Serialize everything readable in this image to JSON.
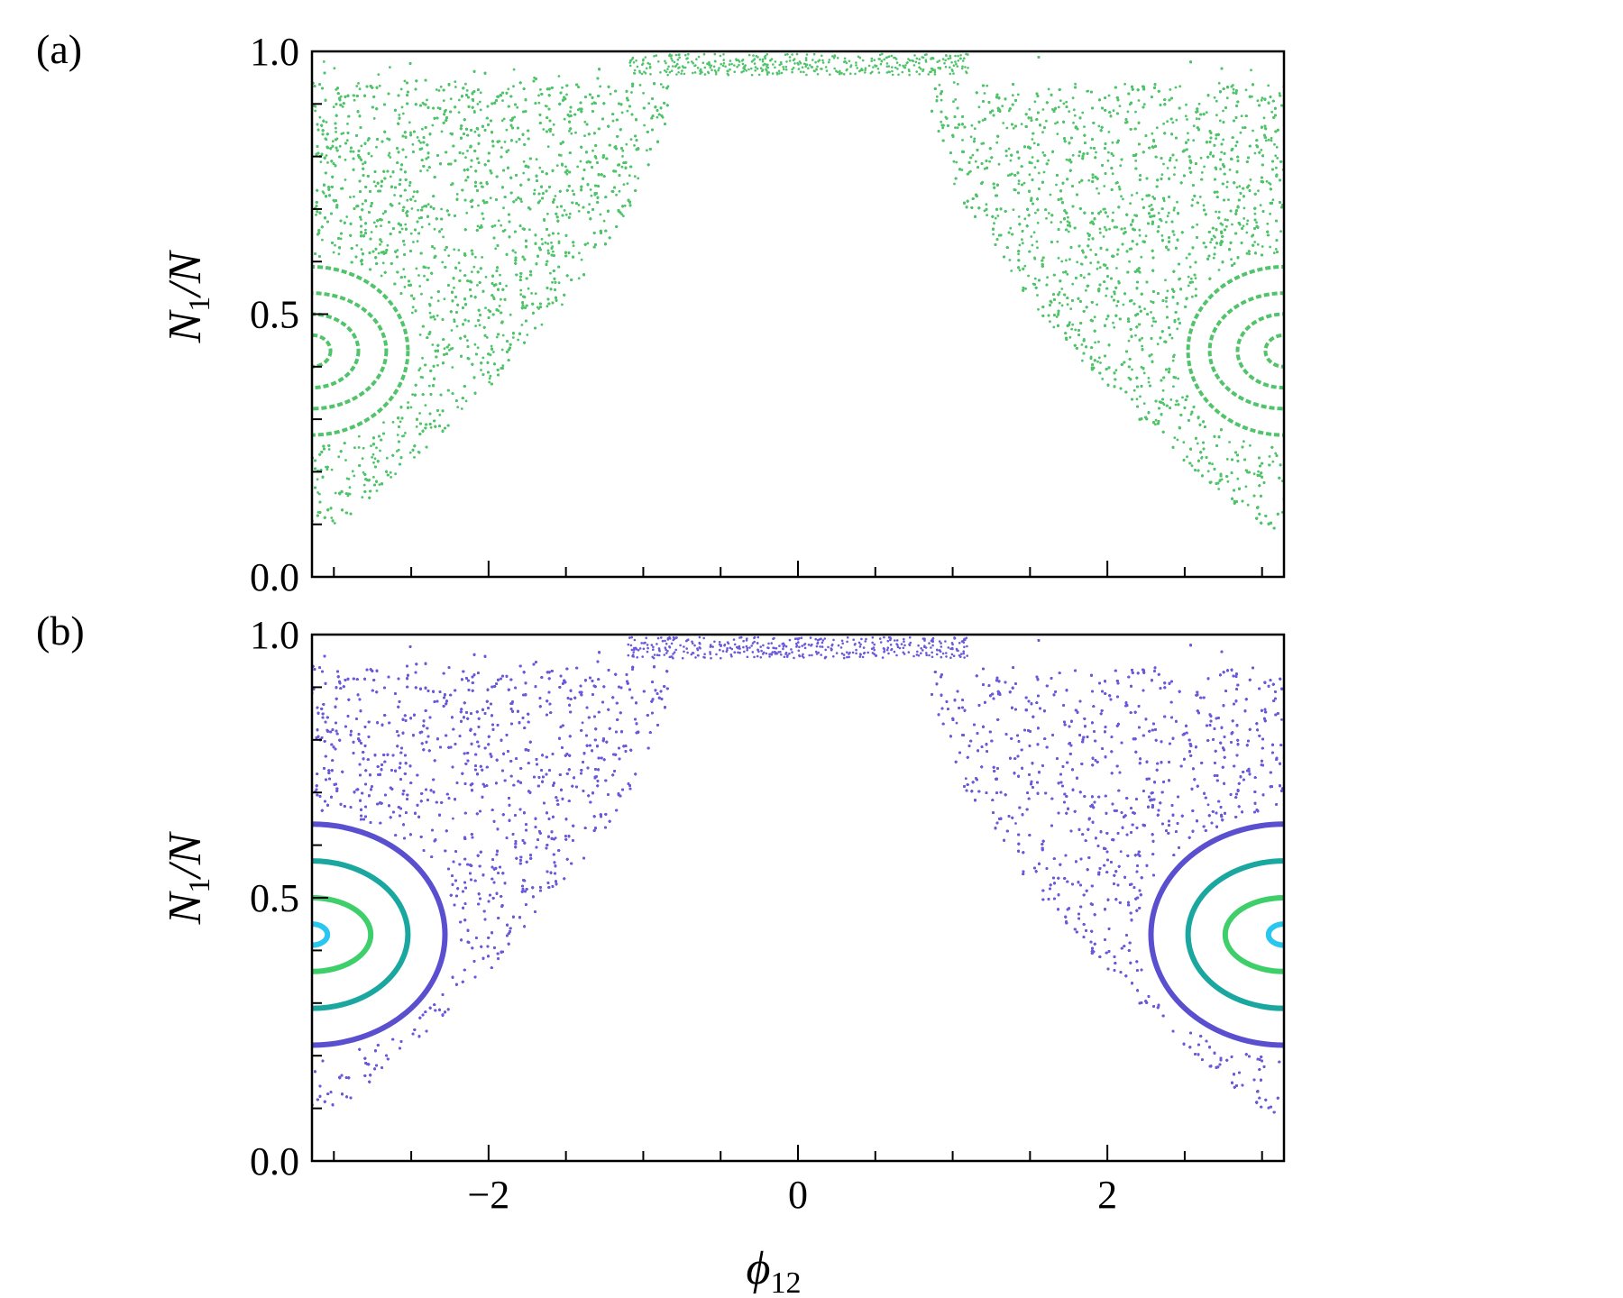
{
  "chart_data": [
    {
      "type": "scatter",
      "panel_label": "(a)",
      "xlabel": "ϕ12",
      "ylabel": "N1/N",
      "xlim": [
        -3.1416,
        3.1416
      ],
      "ylim": [
        0,
        1
      ],
      "x_ticks": [],
      "y_ticks": [
        "0.0",
        "0.5",
        "1.0"
      ],
      "grid": false,
      "colors": {
        "chaotic": "#4fc46a"
      },
      "series": [
        {
          "kind": "chaotic-sea",
          "color": "#4fc46a",
          "points_description_values": {
            "x_inner_edge": 0.82,
            "y_min": 0.08,
            "y_max": 0.99
          }
        },
        {
          "kind": "island-rings",
          "color": "#4fc46a",
          "center": [
            3.1416,
            0.43
          ],
          "rx": [
            0.12,
            0.3,
            0.48,
            0.62
          ],
          "ry": [
            0.03,
            0.07,
            0.11,
            0.16
          ]
        }
      ]
    },
    {
      "type": "scatter",
      "panel_label": "(b)",
      "xlabel": "ϕ12",
      "ylabel": "N1/N",
      "xlim": [
        -3.1416,
        3.1416
      ],
      "ylim": [
        0,
        1
      ],
      "x_ticks": [
        "−2",
        "0",
        "2"
      ],
      "x_tick_values": [
        -2,
        0,
        2
      ],
      "y_ticks": [
        "0.0",
        "0.5",
        "1.0"
      ],
      "grid": false,
      "colors": {
        "chaotic": "#6a5ad9"
      },
      "series": [
        {
          "kind": "chaotic-sea",
          "color": "#6a5ad9",
          "points_description_values": {
            "x_inner_edge": 0.82,
            "y_min": 0.08,
            "y_max": 0.99
          }
        },
        {
          "kind": "island-rings",
          "center": [
            3.1416,
            0.43
          ],
          "rings": [
            {
              "color": "#29c6f0",
              "rx": 0.1,
              "ry": 0.02
            },
            {
              "color": "#3fcf6a",
              "rx": 0.38,
              "ry": 0.07
            },
            {
              "color": "#1aa7a0",
              "rx": 0.62,
              "ry": 0.14
            },
            {
              "color": "#5a4fcf",
              "rx": 0.86,
              "ry": 0.21
            }
          ]
        }
      ]
    }
  ],
  "labels": {
    "panel_a": "(a)",
    "panel_b": "(b)",
    "ylabel_main": "N",
    "ylabel_sub": "1",
    "ylabel_tail": "/N",
    "xlabel_main": "ϕ",
    "xlabel_sub": "12"
  }
}
